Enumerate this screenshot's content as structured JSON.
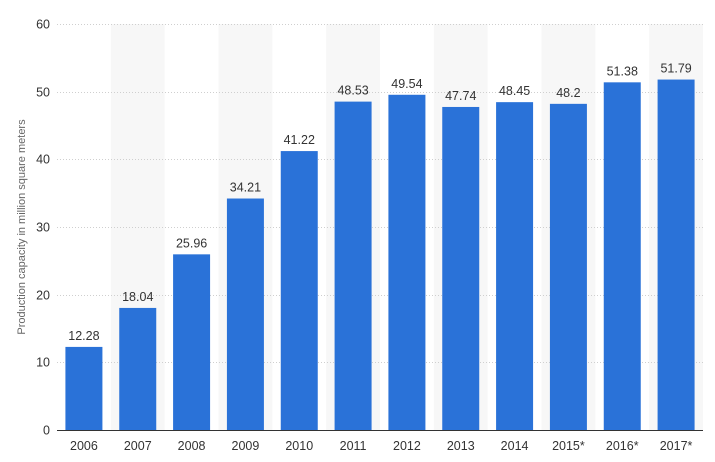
{
  "chart_data": {
    "type": "bar",
    "title": "",
    "xlabel": "",
    "ylabel": "Production capacity in million square meters",
    "categories": [
      "2006",
      "2007",
      "2008",
      "2009",
      "2010",
      "2011",
      "2012",
      "2013",
      "2014",
      "2015*",
      "2016*",
      "2017*"
    ],
    "values": [
      12.28,
      18.04,
      25.96,
      34.21,
      41.22,
      48.53,
      49.54,
      47.74,
      48.45,
      48.2,
      51.38,
      51.79
    ],
    "value_labels": [
      "12.28",
      "18.04",
      "25.96",
      "34.21",
      "41.22",
      "48.53",
      "49.54",
      "47.74",
      "48.45",
      "48.2",
      "51.38",
      "51.79"
    ],
    "ylim": [
      0,
      60
    ],
    "yticks": [
      "0",
      "10",
      "20",
      "30",
      "40",
      "50",
      "60"
    ],
    "grid": true,
    "legend": "none",
    "colors": {
      "bar": "#2a72d8",
      "band": "#f7f7f7",
      "grid": "#cfcfcf",
      "text": "#333333"
    }
  }
}
